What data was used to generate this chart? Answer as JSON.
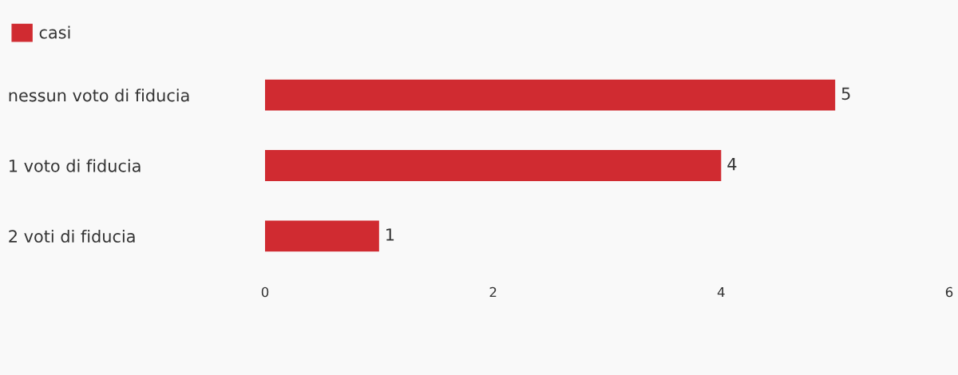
{
  "chart_data": {
    "type": "bar",
    "orientation": "horizontal",
    "categories": [
      "nessun voto di fiducia",
      "1 voto di fiducia",
      "2 voti di fiducia"
    ],
    "series": [
      {
        "name": "casi",
        "color": "#d02b31",
        "values": [
          5,
          4,
          1
        ]
      }
    ],
    "xlim": [
      0,
      6
    ],
    "xticks": [
      0,
      2,
      4,
      6
    ],
    "data_labels": true,
    "grid": false,
    "legend": "top left"
  }
}
